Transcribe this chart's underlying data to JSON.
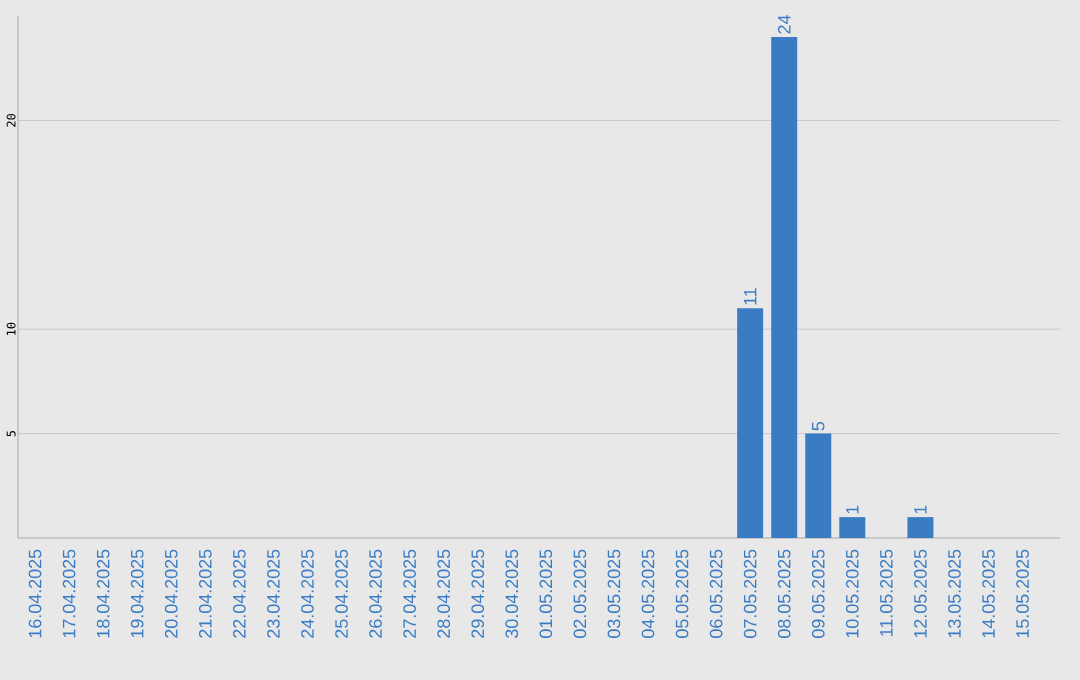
{
  "chart_data": {
    "type": "bar",
    "categories": [
      "16.04.2025",
      "17.04.2025",
      "18.04.2025",
      "19.04.2025",
      "20.04.2025",
      "21.04.2025",
      "22.04.2025",
      "23.04.2025",
      "24.04.2025",
      "25.04.2025",
      "26.04.2025",
      "27.04.2025",
      "28.04.2025",
      "29.04.2025",
      "30.04.2025",
      "01.05.2025",
      "02.05.2025",
      "03.05.2025",
      "04.05.2025",
      "05.05.2025",
      "06.05.2025",
      "07.05.2025",
      "08.05.2025",
      "09.05.2025",
      "10.05.2025",
      "11.05.2025",
      "12.05.2025",
      "13.05.2025",
      "14.05.2025",
      "15.05.2025"
    ],
    "values": [
      0,
      0,
      0,
      0,
      0,
      0,
      0,
      0,
      0,
      0,
      0,
      0,
      0,
      0,
      0,
      0,
      0,
      0,
      0,
      0,
      0,
      11,
      24,
      5,
      1,
      0,
      1,
      0,
      0,
      0
    ],
    "value_labels": [
      null,
      null,
      null,
      null,
      null,
      null,
      null,
      null,
      null,
      null,
      null,
      null,
      null,
      null,
      null,
      null,
      null,
      null,
      null,
      null,
      null,
      "11",
      "24",
      "5",
      "1",
      null,
      "1",
      null,
      null,
      null
    ],
    "color": "#3a7cc4",
    "ylim": [
      0,
      25
    ],
    "yticks": [
      5,
      10,
      20
    ],
    "grid": "y"
  }
}
